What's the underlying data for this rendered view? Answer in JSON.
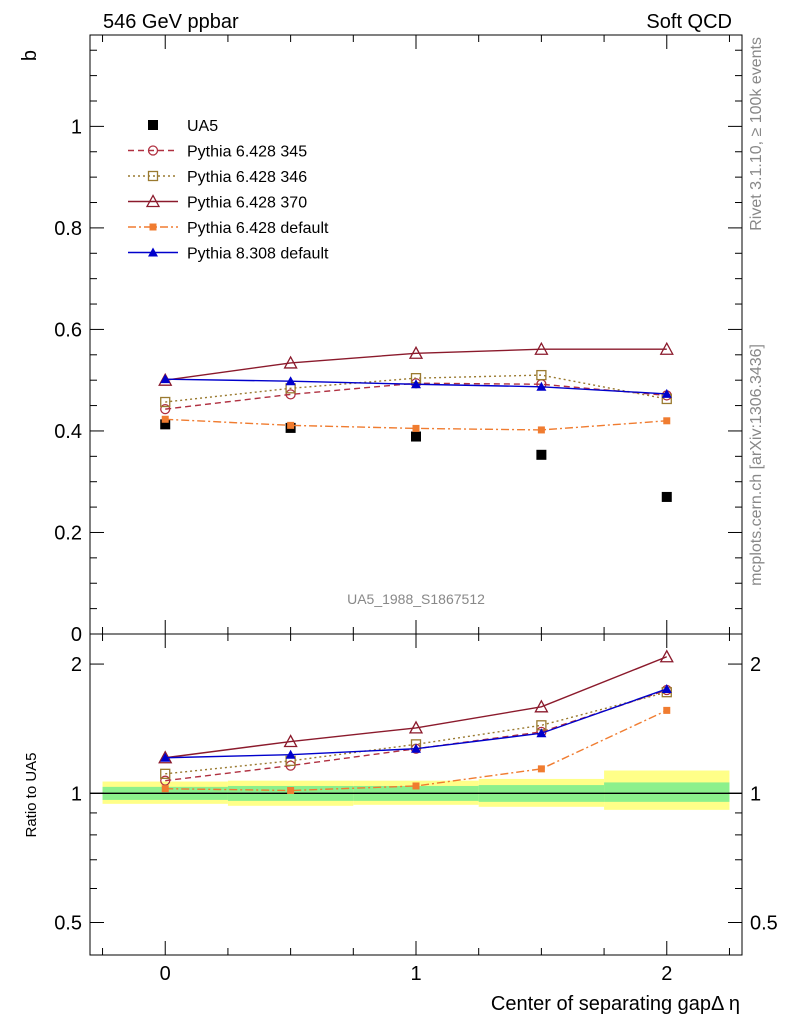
{
  "header": {
    "left": "546 GeV ppbar",
    "right": "Soft QCD"
  },
  "side_labels": {
    "rivet": "Rivet 3.1.10, ≥ 100k events",
    "mcplots": "mcplots.cern.ch [arXiv:1306.3436]"
  },
  "watermark": "UA5_1988_S1867512",
  "chart_data": [
    {
      "type": "line",
      "name": "main",
      "ylabel": "b",
      "xlabel": "",
      "xlim": [
        -0.3,
        2.3
      ],
      "ylim": [
        0,
        1.18
      ],
      "yticks": [
        {
          "value": 0,
          "label": "0"
        },
        {
          "value": 0.2,
          "label": "0.2"
        },
        {
          "value": 0.4,
          "label": "0.4"
        },
        {
          "value": 0.6,
          "label": "0.6"
        },
        {
          "value": 0.8,
          "label": "0.8"
        },
        {
          "value": 1.0,
          "label": "1"
        }
      ],
      "x": [
        0,
        0.5,
        1,
        1.5,
        2
      ],
      "series": [
        {
          "name": "UA5",
          "color": "#000000",
          "marker": "square-filled",
          "line": "none",
          "values": [
            0.413,
            0.406,
            0.389,
            0.353,
            0.27
          ]
        },
        {
          "name": "Pythia 6.428 345",
          "color": "#b03040",
          "marker": "circle-open",
          "line": "dashed",
          "values": [
            0.443,
            0.472,
            0.494,
            0.492,
            0.47
          ]
        },
        {
          "name": "Pythia 6.428 346",
          "color": "#9a7a30",
          "marker": "square-open",
          "line": "dotted",
          "values": [
            0.457,
            0.484,
            0.504,
            0.51,
            0.463
          ]
        },
        {
          "name": "Pythia 6.428 370",
          "color": "#8b1a2c",
          "marker": "triangle-open",
          "line": "solid",
          "values": [
            0.5,
            0.534,
            0.553,
            0.561,
            0.561
          ]
        },
        {
          "name": "Pythia 6.428 default",
          "color": "#f07c30",
          "marker": "square-filled-small",
          "line": "dashdot",
          "values": [
            0.423,
            0.411,
            0.405,
            0.402,
            0.42
          ]
        },
        {
          "name": "Pythia 8.308 default",
          "color": "#0000cc",
          "marker": "triangle-filled",
          "line": "solid",
          "values": [
            0.502,
            0.498,
            0.492,
            0.487,
            0.473
          ]
        }
      ]
    },
    {
      "type": "line",
      "name": "ratio",
      "ylabel": "Ratio to UA5",
      "xlabel": "Center of separating gapΔ η",
      "scale": "log",
      "xlim": [
        -0.3,
        2.3
      ],
      "ylim": [
        0.42,
        2.35
      ],
      "xticks": [
        {
          "value": 0,
          "label": "0"
        },
        {
          "value": 1,
          "label": "1"
        },
        {
          "value": 2,
          "label": "2"
        }
      ],
      "yticks": [
        {
          "value": 0.5,
          "label": "0.5"
        },
        {
          "value": 1,
          "label": "1"
        },
        {
          "value": 2,
          "label": "2"
        }
      ],
      "x": [
        0,
        0.5,
        1,
        1.5,
        2
      ],
      "bands": [
        {
          "x0": -0.25,
          "x1": 0.25,
          "yellow": [
            0.945,
            1.065
          ],
          "green": [
            0.965,
            1.035
          ]
        },
        {
          "x0": 0.25,
          "x1": 0.75,
          "yellow": [
            0.935,
            1.07
          ],
          "green": [
            0.96,
            1.04
          ]
        },
        {
          "x0": 0.75,
          "x1": 1.25,
          "yellow": [
            0.94,
            1.07
          ],
          "green": [
            0.96,
            1.04
          ]
        },
        {
          "x0": 1.25,
          "x1": 1.75,
          "yellow": [
            0.93,
            1.08
          ],
          "green": [
            0.955,
            1.045
          ]
        },
        {
          "x0": 1.75,
          "x1": 2.25,
          "yellow": [
            0.915,
            1.13
          ],
          "green": [
            0.955,
            1.06
          ]
        }
      ],
      "series": [
        {
          "name": "Pythia 6.428 345",
          "color": "#b03040",
          "marker": "circle-open",
          "line": "dashed",
          "values": [
            1.07,
            1.16,
            1.27,
            1.39,
            1.74
          ]
        },
        {
          "name": "Pythia 6.428 346",
          "color": "#9a7a30",
          "marker": "square-open",
          "line": "dotted",
          "values": [
            1.11,
            1.19,
            1.3,
            1.44,
            1.72
          ]
        },
        {
          "name": "Pythia 6.428 370",
          "color": "#8b1a2c",
          "marker": "triangle-open",
          "line": "solid",
          "values": [
            1.21,
            1.32,
            1.42,
            1.59,
            2.08
          ]
        },
        {
          "name": "Pythia 6.428 default",
          "color": "#f07c30",
          "marker": "square-filled-small",
          "line": "dashdot",
          "values": [
            1.025,
            1.015,
            1.04,
            1.14,
            1.56
          ]
        },
        {
          "name": "Pythia 8.308 default",
          "color": "#0000cc",
          "marker": "triangle-filled",
          "line": "solid",
          "values": [
            1.21,
            1.23,
            1.27,
            1.38,
            1.75
          ]
        }
      ]
    }
  ]
}
